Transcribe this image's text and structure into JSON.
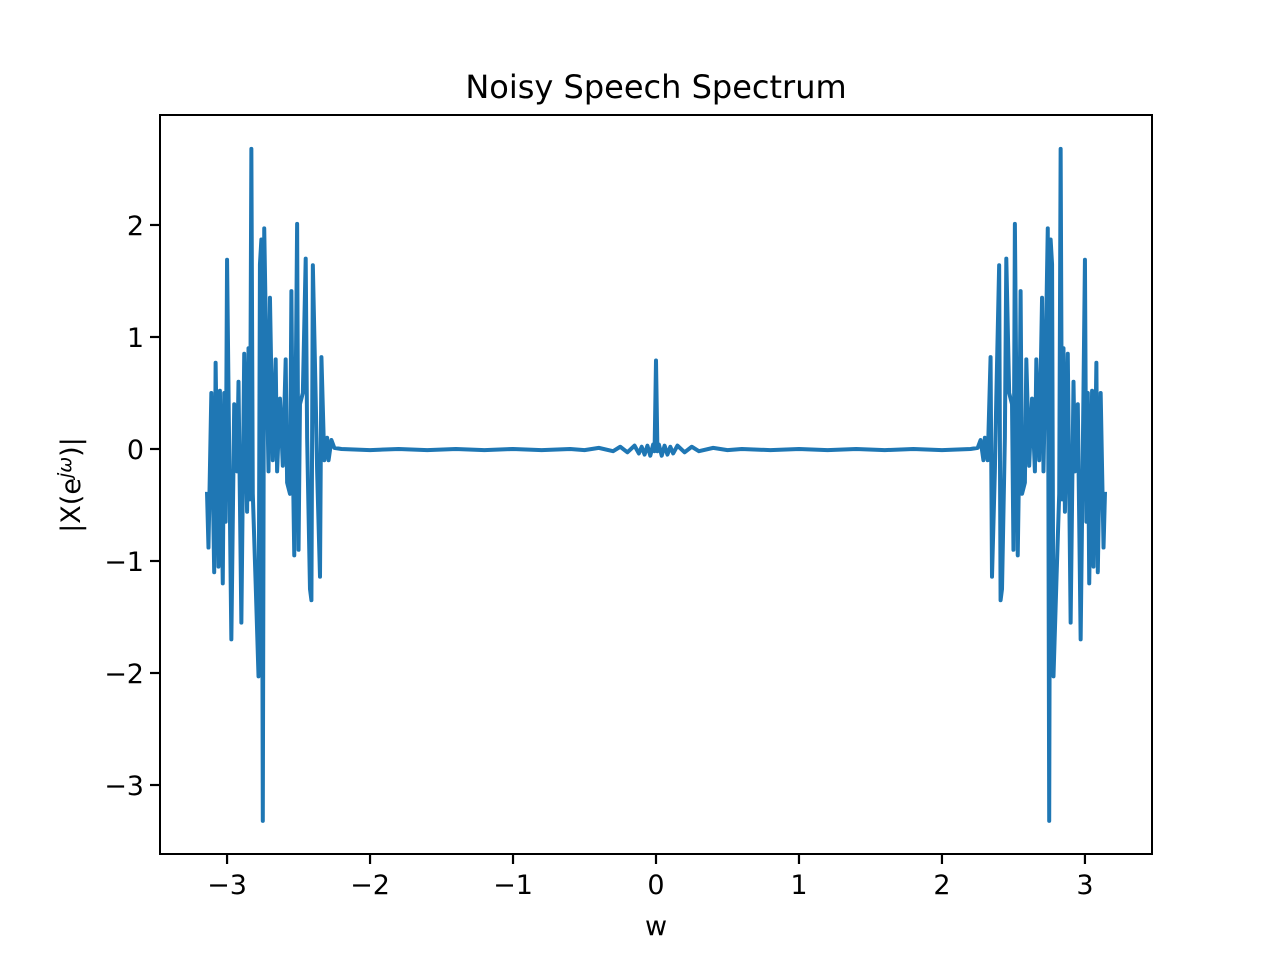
{
  "chart_data": {
    "type": "line",
    "title": "Noisy Speech Spectrum",
    "xlabel": "w",
    "ylabel": {
      "base": "|X(e",
      "sup": "jω",
      "end": ")|"
    },
    "color": "#1f77b4",
    "xlim": [
      -3.469,
      3.469
    ],
    "ylim": [
      -3.616,
      2.982
    ],
    "xticks": [
      {
        "value": -3,
        "label": "−3"
      },
      {
        "value": -2,
        "label": "−2"
      },
      {
        "value": -1,
        "label": "−1"
      },
      0,
      1,
      2,
      3
    ],
    "yticks": [
      {
        "value": -3,
        "label": "−3"
      },
      {
        "value": -2,
        "label": "−2"
      },
      {
        "value": -1,
        "label": "−1"
      },
      0,
      1,
      2
    ],
    "x": [
      -3.14,
      -3.13,
      -3.11,
      -3.09,
      -3.08,
      -3.06,
      -3.05,
      -3.03,
      -3.02,
      -3.01,
      -3.0,
      -2.98,
      -2.97,
      -2.95,
      -2.93,
      -2.92,
      -2.9,
      -2.88,
      -2.86,
      -2.85,
      -2.84,
      -2.83,
      -2.82,
      -2.8,
      -2.78,
      -2.77,
      -2.76,
      -2.75,
      -2.74,
      -2.73,
      -2.71,
      -2.7,
      -2.68,
      -2.66,
      -2.65,
      -2.63,
      -2.61,
      -2.59,
      -2.58,
      -2.56,
      -2.55,
      -2.54,
      -2.53,
      -2.51,
      -2.5,
      -2.49,
      -2.47,
      -2.45,
      -2.44,
      -2.42,
      -2.41,
      -2.4,
      -2.38,
      -2.37,
      -2.35,
      -2.34,
      -2.32,
      -2.3,
      -2.29,
      -2.27,
      -2.25,
      -2.2,
      -2.0,
      -1.8,
      -1.6,
      -1.4,
      -1.2,
      -1.0,
      -0.8,
      -0.6,
      -0.5,
      -0.4,
      -0.3,
      -0.25,
      -0.2,
      -0.15,
      -0.12,
      -0.1,
      -0.08,
      -0.06,
      -0.04,
      -0.02,
      -0.01,
      0,
      0.01,
      0.02,
      0.04,
      0.06,
      0.08,
      0.1,
      0.12,
      0.15,
      0.2,
      0.25,
      0.3,
      0.4,
      0.5,
      0.6,
      0.8,
      1.0,
      1.2,
      1.4,
      1.6,
      1.8,
      2.0,
      2.2,
      2.25,
      2.27,
      2.29,
      2.3,
      2.32,
      2.34,
      2.35,
      2.37,
      2.38,
      2.4,
      2.41,
      2.42,
      2.44,
      2.45,
      2.47,
      2.49,
      2.5,
      2.51,
      2.53,
      2.54,
      2.55,
      2.56,
      2.58,
      2.59,
      2.61,
      2.63,
      2.65,
      2.66,
      2.68,
      2.7,
      2.71,
      2.73,
      2.74,
      2.75,
      2.76,
      2.77,
      2.78,
      2.8,
      2.82,
      2.83,
      2.84,
      2.85,
      2.86,
      2.88,
      2.9,
      2.92,
      2.93,
      2.95,
      2.97,
      2.98,
      3.0,
      3.01,
      3.02,
      3.03,
      3.05,
      3.06,
      3.08,
      3.09,
      3.11,
      3.13,
      3.14
    ],
    "values": [
      -0.4,
      -0.88,
      0.5,
      -1.1,
      0.77,
      -1.05,
      0.52,
      -1.2,
      0.5,
      -0.65,
      1.69,
      -0.6,
      -1.7,
      0.4,
      -0.2,
      0.6,
      -1.55,
      0.85,
      -0.56,
      0.9,
      -0.45,
      2.68,
      -0.4,
      -1.2,
      -2.03,
      1.65,
      1.87,
      -3.32,
      1.97,
      1.2,
      -0.2,
      1.35,
      -0.1,
      0.8,
      -0.2,
      0.45,
      -0.15,
      0.8,
      -0.3,
      -0.4,
      1.41,
      -0.1,
      -0.95,
      2.01,
      -0.9,
      0.4,
      0.5,
      1.7,
      0.1,
      -1.25,
      -1.35,
      1.64,
      0.45,
      -0.2,
      -1.14,
      0.82,
      -0.1,
      0.1,
      -0.1,
      0.08,
      0.01,
      0,
      -0.01,
      0,
      -0.01,
      0,
      -0.01,
      0,
      -0.01,
      0,
      -0.01,
      0.01,
      -0.02,
      0.02,
      -0.03,
      0.03,
      -0.04,
      0.02,
      -0.05,
      0.03,
      -0.06,
      0.04,
      -0.02,
      0.79,
      -0.02,
      0.04,
      -0.06,
      0.03,
      -0.05,
      0.02,
      -0.04,
      0.03,
      -0.03,
      0.02,
      -0.02,
      0.01,
      -0.01,
      0,
      -0.01,
      0,
      -0.01,
      0,
      -0.01,
      0,
      -0.01,
      0,
      0.01,
      0.08,
      -0.1,
      0.1,
      -0.1,
      0.82,
      -1.14,
      -0.2,
      0.45,
      1.64,
      -1.35,
      -1.25,
      0.1,
      1.7,
      0.5,
      0.4,
      -0.9,
      2.01,
      -0.95,
      -0.1,
      1.41,
      -0.4,
      -0.3,
      0.8,
      -0.15,
      0.45,
      -0.2,
      0.8,
      -0.1,
      1.35,
      -0.2,
      1.2,
      1.97,
      -3.32,
      1.87,
      1.65,
      -2.03,
      -1.2,
      -0.4,
      2.68,
      -0.45,
      0.9,
      -0.56,
      0.85,
      -1.55,
      0.6,
      -0.2,
      0.4,
      -1.7,
      -0.6,
      1.69,
      -0.65,
      0.5,
      -1.2,
      0.52,
      -1.05,
      0.77,
      -1.1,
      0.5,
      -0.88,
      -0.4
    ]
  }
}
